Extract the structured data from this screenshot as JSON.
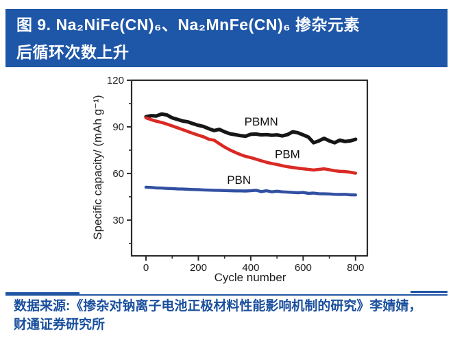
{
  "figure_header": {
    "title_line1": "图 9. Na₂NiFe(CN)₆、Na₂MnFe(CN)₆ 掺杂元素",
    "title_line2": "后循环次数上升",
    "bg_color": "#1e56a8",
    "text_color": "#ffffff"
  },
  "source_note": {
    "line1": "数据来源:《掺杂对钠离子电池正极材料性能影响机制的研究》李婧婧，",
    "line2": "财通证券研究所",
    "text_color": "#1a4f9d",
    "rule_color": "#2155a4"
  },
  "chart_data": {
    "type": "line",
    "title": "",
    "xlabel": "Cycle number",
    "ylabel": "Specific capacity/ (mAh g⁻¹)",
    "x_ticks": [
      0,
      200,
      400,
      600,
      800
    ],
    "x_minor_ticks": [
      100,
      300,
      500,
      700
    ],
    "y_ticks": [
      30,
      60,
      90,
      120
    ],
    "y_minor_ticks": [
      15,
      45,
      75,
      105
    ],
    "xlim": [
      -55,
      845
    ],
    "ylim": [
      7,
      120
    ],
    "grid": false,
    "legend_position": "inline-labels",
    "axis_color": "#2b2b2b",
    "x": [
      0,
      20,
      40,
      60,
      80,
      100,
      120,
      140,
      160,
      180,
      200,
      220,
      240,
      260,
      280,
      300,
      320,
      340,
      360,
      380,
      400,
      420,
      440,
      460,
      480,
      500,
      520,
      540,
      560,
      580,
      600,
      620,
      640,
      660,
      680,
      700,
      720,
      740,
      760,
      780,
      800
    ],
    "series": [
      {
        "name": "PBMN",
        "color": "#161616",
        "label_at": {
          "cycle": 440,
          "value": 93.5
        },
        "values": [
          96.5,
          97.2,
          97.0,
          98.3,
          97.6,
          95.8,
          94.8,
          93.8,
          93.2,
          92.0,
          91.0,
          90.2,
          88.8,
          87.6,
          88.4,
          86.8,
          85.6,
          85.0,
          84.4,
          84.0,
          85.2,
          85.4,
          84.8,
          85.0,
          84.6,
          84.8,
          84.2,
          85.0,
          86.8,
          86.2,
          84.8,
          83.4,
          79.8,
          81.0,
          82.6,
          81.0,
          79.8,
          81.4,
          80.6,
          81.0,
          82.0
        ]
      },
      {
        "name": "PBM",
        "color": "#da2a25",
        "label_at": {
          "cycle": 540,
          "value": 72.5
        },
        "values": [
          95.8,
          94.6,
          93.6,
          92.8,
          91.8,
          90.6,
          89.4,
          88.2,
          87.0,
          85.8,
          84.6,
          83.6,
          82.0,
          81.4,
          79.2,
          77.0,
          75.2,
          73.6,
          72.2,
          71.0,
          70.2,
          69.2,
          68.2,
          67.2,
          66.4,
          65.8,
          65.0,
          64.4,
          63.8,
          63.4,
          63.0,
          62.6,
          62.2,
          62.6,
          63.0,
          62.4,
          61.8,
          61.4,
          61.2,
          60.8,
          60.2
        ]
      },
      {
        "name": "PBN",
        "color": "#3250a2",
        "label_at": {
          "cycle": 355,
          "value": 56.0
        },
        "values": [
          51.2,
          51.0,
          50.7,
          50.6,
          50.4,
          50.3,
          50.1,
          50.0,
          49.8,
          49.7,
          49.6,
          49.4,
          49.3,
          49.2,
          49.1,
          49.0,
          48.9,
          48.8,
          48.8,
          48.7,
          48.9,
          49.2,
          48.3,
          48.9,
          48.2,
          48.6,
          48.2,
          48.0,
          47.8,
          47.6,
          47.8,
          47.2,
          47.4,
          47.0,
          46.9,
          46.8,
          46.6,
          46.5,
          46.6,
          46.3,
          46.2
        ]
      }
    ]
  }
}
